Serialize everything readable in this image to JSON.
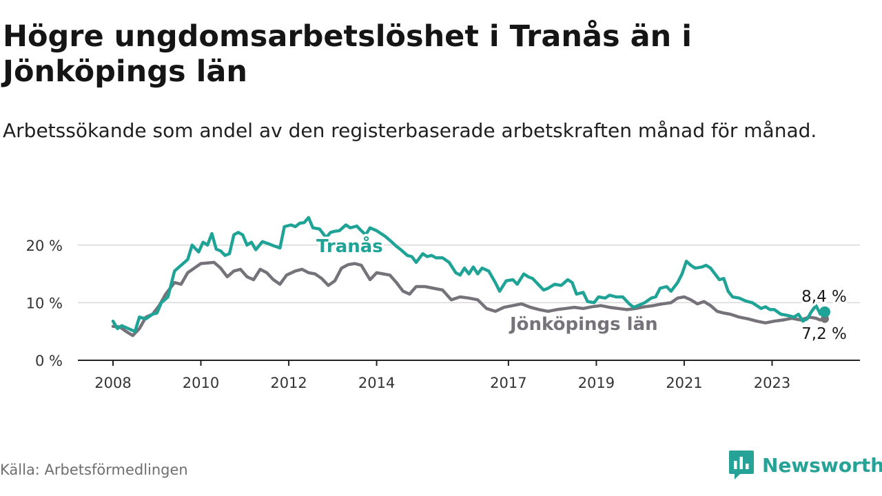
{
  "title": "Högre ungdomsarbetslöshet i Tranås än i Jönköpings län",
  "subtitle": "Arbetssökande som andel av den registerbaserade arbetskraften månad för månad.",
  "source": "Källa: Arbetsförmedlingen",
  "brand": {
    "name": "Newsworthy",
    "logo_icon": "newsworthy-logo-icon"
  },
  "colors": {
    "tranas": "#1fa396",
    "jonkoping": "#767279",
    "grid": "#d9d9d9",
    "axis": "#222222"
  },
  "chart_data": {
    "type": "line",
    "title": "Högre ungdomsarbetslöshet i Tranås än i Jönköpings län",
    "xlabel": "",
    "ylabel": "",
    "xlim": [
      2008,
      2024.9
    ],
    "ylim": [
      0,
      25
    ],
    "y_ticks": [
      0,
      10,
      20
    ],
    "y_tick_labels": [
      "0 %",
      "10 %",
      "20 %"
    ],
    "x_ticks": [
      2008,
      2010,
      2012,
      2014,
      2017,
      2019,
      2021,
      2023
    ],
    "x_tick_labels": [
      "2008",
      "2010",
      "2012",
      "2014",
      "2017",
      "2019",
      "2021",
      "2023"
    ],
    "grid": true,
    "series": [
      {
        "name": "Tranås",
        "label": "Tranås",
        "color": "#1fa396",
        "end_label": "8,4 %",
        "points": [
          [
            2008.0,
            6.8
          ],
          [
            2008.1,
            5.5
          ],
          [
            2008.2,
            6.0
          ],
          [
            2008.35,
            5.5
          ],
          [
            2008.5,
            5.0
          ],
          [
            2008.6,
            7.5
          ],
          [
            2008.75,
            7.2
          ],
          [
            2008.9,
            8.0
          ],
          [
            2009.0,
            8.2
          ],
          [
            2009.1,
            10.0
          ],
          [
            2009.25,
            11.0
          ],
          [
            2009.4,
            15.5
          ],
          [
            2009.55,
            16.5
          ],
          [
            2009.7,
            17.5
          ],
          [
            2009.8,
            20.0
          ],
          [
            2009.95,
            18.8
          ],
          [
            2010.05,
            20.5
          ],
          [
            2010.15,
            20.0
          ],
          [
            2010.25,
            22.0
          ],
          [
            2010.35,
            19.3
          ],
          [
            2010.45,
            19.0
          ],
          [
            2010.55,
            18.2
          ],
          [
            2010.65,
            18.5
          ],
          [
            2010.75,
            21.8
          ],
          [
            2010.85,
            22.2
          ],
          [
            2010.95,
            21.8
          ],
          [
            2011.05,
            20.0
          ],
          [
            2011.15,
            20.5
          ],
          [
            2011.25,
            19.2
          ],
          [
            2011.4,
            20.6
          ],
          [
            2011.55,
            20.2
          ],
          [
            2011.65,
            19.9
          ],
          [
            2011.8,
            19.5
          ],
          [
            2011.9,
            23.2
          ],
          [
            2012.05,
            23.5
          ],
          [
            2012.15,
            23.2
          ],
          [
            2012.25,
            23.8
          ],
          [
            2012.35,
            23.9
          ],
          [
            2012.45,
            24.8
          ],
          [
            2012.55,
            23.0
          ],
          [
            2012.7,
            22.8
          ],
          [
            2012.85,
            21.3
          ],
          [
            2012.95,
            22.2
          ],
          [
            2013.05,
            22.4
          ],
          [
            2013.15,
            22.5
          ],
          [
            2013.3,
            23.5
          ],
          [
            2013.4,
            23.0
          ],
          [
            2013.55,
            23.3
          ],
          [
            2013.65,
            22.5
          ],
          [
            2013.75,
            21.8
          ],
          [
            2013.85,
            23.0
          ],
          [
            2014.0,
            22.5
          ],
          [
            2014.2,
            21.5
          ],
          [
            2014.35,
            20.5
          ],
          [
            2014.45,
            19.8
          ],
          [
            2014.55,
            19.2
          ],
          [
            2014.7,
            18.2
          ],
          [
            2014.8,
            18.0
          ],
          [
            2014.9,
            17.0
          ],
          [
            2015.05,
            18.5
          ],
          [
            2015.15,
            18.0
          ],
          [
            2015.25,
            18.2
          ],
          [
            2015.35,
            17.8
          ],
          [
            2015.5,
            17.8
          ],
          [
            2015.65,
            17.0
          ],
          [
            2015.8,
            15.2
          ],
          [
            2015.9,
            14.8
          ],
          [
            2016.0,
            16.0
          ],
          [
            2016.1,
            15.0
          ],
          [
            2016.2,
            16.2
          ],
          [
            2016.3,
            15.0
          ],
          [
            2016.4,
            16.0
          ],
          [
            2016.55,
            15.5
          ],
          [
            2016.7,
            13.5
          ],
          [
            2016.8,
            12.0
          ],
          [
            2016.95,
            13.8
          ],
          [
            2017.1,
            14.0
          ],
          [
            2017.2,
            13.2
          ],
          [
            2017.35,
            15.0
          ],
          [
            2017.45,
            14.5
          ],
          [
            2017.55,
            14.2
          ],
          [
            2017.7,
            13.0
          ],
          [
            2017.8,
            12.2
          ],
          [
            2017.9,
            12.5
          ],
          [
            2018.05,
            13.2
          ],
          [
            2018.2,
            13.0
          ],
          [
            2018.35,
            14.0
          ],
          [
            2018.45,
            13.5
          ],
          [
            2018.55,
            11.5
          ],
          [
            2018.7,
            11.8
          ],
          [
            2018.8,
            10.2
          ],
          [
            2018.95,
            10.0
          ],
          [
            2019.05,
            11.0
          ],
          [
            2019.2,
            10.8
          ],
          [
            2019.3,
            11.3
          ],
          [
            2019.45,
            11.0
          ],
          [
            2019.6,
            11.0
          ],
          [
            2019.75,
            9.8
          ],
          [
            2019.85,
            9.2
          ],
          [
            2019.95,
            9.5
          ],
          [
            2020.1,
            10.0
          ],
          [
            2020.25,
            10.8
          ],
          [
            2020.35,
            11.0
          ],
          [
            2020.45,
            12.5
          ],
          [
            2020.6,
            12.8
          ],
          [
            2020.7,
            12.0
          ],
          [
            2020.85,
            13.5
          ],
          [
            2020.95,
            15.0
          ],
          [
            2021.05,
            17.2
          ],
          [
            2021.15,
            16.5
          ],
          [
            2021.25,
            16.0
          ],
          [
            2021.4,
            16.2
          ],
          [
            2021.5,
            16.5
          ],
          [
            2021.6,
            16.0
          ],
          [
            2021.7,
            15.0
          ],
          [
            2021.8,
            14.0
          ],
          [
            2021.9,
            14.2
          ],
          [
            2022.0,
            12.0
          ],
          [
            2022.1,
            11.0
          ],
          [
            2022.25,
            10.8
          ],
          [
            2022.4,
            10.3
          ],
          [
            2022.55,
            10.0
          ],
          [
            2022.65,
            9.5
          ],
          [
            2022.75,
            9.0
          ],
          [
            2022.85,
            9.3
          ],
          [
            2022.95,
            8.8
          ],
          [
            2023.05,
            8.8
          ],
          [
            2023.2,
            8.0
          ],
          [
            2023.35,
            7.8
          ],
          [
            2023.5,
            7.5
          ],
          [
            2023.6,
            8.0
          ],
          [
            2023.7,
            6.8
          ],
          [
            2023.8,
            7.2
          ],
          [
            2023.9,
            8.5
          ],
          [
            2024.0,
            9.5
          ],
          [
            2024.1,
            8.0
          ],
          [
            2024.2,
            8.4
          ]
        ]
      },
      {
        "name": "Jönköpings län",
        "label": "Jönköpings län",
        "color": "#767279",
        "end_label": "7,2 %",
        "points": [
          [
            2008.0,
            5.9
          ],
          [
            2008.15,
            5.8
          ],
          [
            2008.3,
            5.0
          ],
          [
            2008.45,
            4.3
          ],
          [
            2008.6,
            5.5
          ],
          [
            2008.75,
            7.5
          ],
          [
            2008.9,
            8.0
          ],
          [
            2009.05,
            9.5
          ],
          [
            2009.2,
            11.5
          ],
          [
            2009.4,
            13.5
          ],
          [
            2009.55,
            13.2
          ],
          [
            2009.7,
            15.2
          ],
          [
            2009.85,
            16.0
          ],
          [
            2010.0,
            16.8
          ],
          [
            2010.15,
            16.9
          ],
          [
            2010.3,
            17.0
          ],
          [
            2010.45,
            16.0
          ],
          [
            2010.6,
            14.5
          ],
          [
            2010.75,
            15.5
          ],
          [
            2010.9,
            15.8
          ],
          [
            2011.05,
            14.5
          ],
          [
            2011.2,
            14.0
          ],
          [
            2011.35,
            15.8
          ],
          [
            2011.5,
            15.2
          ],
          [
            2011.65,
            14.0
          ],
          [
            2011.8,
            13.2
          ],
          [
            2011.95,
            14.8
          ],
          [
            2012.15,
            15.5
          ],
          [
            2012.3,
            15.8
          ],
          [
            2012.45,
            15.2
          ],
          [
            2012.6,
            15.0
          ],
          [
            2012.75,
            14.2
          ],
          [
            2012.9,
            13.0
          ],
          [
            2013.05,
            13.8
          ],
          [
            2013.2,
            16.0
          ],
          [
            2013.35,
            16.6
          ],
          [
            2013.5,
            16.8
          ],
          [
            2013.65,
            16.5
          ],
          [
            2013.85,
            14.0
          ],
          [
            2014.0,
            15.2
          ],
          [
            2014.15,
            15.0
          ],
          [
            2014.3,
            14.8
          ],
          [
            2014.45,
            13.5
          ],
          [
            2014.6,
            12.0
          ],
          [
            2014.75,
            11.5
          ],
          [
            2014.9,
            12.8
          ],
          [
            2015.1,
            12.8
          ],
          [
            2015.3,
            12.5
          ],
          [
            2015.5,
            12.2
          ],
          [
            2015.7,
            10.5
          ],
          [
            2015.9,
            11.0
          ],
          [
            2016.1,
            10.8
          ],
          [
            2016.3,
            10.5
          ],
          [
            2016.5,
            9.0
          ],
          [
            2016.7,
            8.5
          ],
          [
            2016.9,
            9.2
          ],
          [
            2017.1,
            9.5
          ],
          [
            2017.3,
            9.8
          ],
          [
            2017.5,
            9.2
          ],
          [
            2017.7,
            8.8
          ],
          [
            2017.9,
            8.5
          ],
          [
            2018.1,
            8.8
          ],
          [
            2018.3,
            9.0
          ],
          [
            2018.5,
            9.2
          ],
          [
            2018.7,
            9.0
          ],
          [
            2018.9,
            9.3
          ],
          [
            2019.1,
            9.5
          ],
          [
            2019.3,
            9.2
          ],
          [
            2019.5,
            9.0
          ],
          [
            2019.7,
            8.8
          ],
          [
            2019.9,
            9.0
          ],
          [
            2020.1,
            9.3
          ],
          [
            2020.3,
            9.5
          ],
          [
            2020.5,
            9.8
          ],
          [
            2020.7,
            10.0
          ],
          [
            2020.85,
            10.8
          ],
          [
            2021.0,
            11.0
          ],
          [
            2021.15,
            10.5
          ],
          [
            2021.3,
            9.8
          ],
          [
            2021.45,
            10.2
          ],
          [
            2021.6,
            9.5
          ],
          [
            2021.75,
            8.5
          ],
          [
            2021.9,
            8.2
          ],
          [
            2022.05,
            8.0
          ],
          [
            2022.25,
            7.5
          ],
          [
            2022.45,
            7.2
          ],
          [
            2022.65,
            6.8
          ],
          [
            2022.85,
            6.5
          ],
          [
            2023.05,
            6.8
          ],
          [
            2023.25,
            7.0
          ],
          [
            2023.45,
            7.3
          ],
          [
            2023.65,
            7.0
          ],
          [
            2023.85,
            7.5
          ],
          [
            2024.0,
            7.3
          ],
          [
            2024.1,
            7.0
          ],
          [
            2024.2,
            7.2
          ]
        ]
      }
    ]
  }
}
